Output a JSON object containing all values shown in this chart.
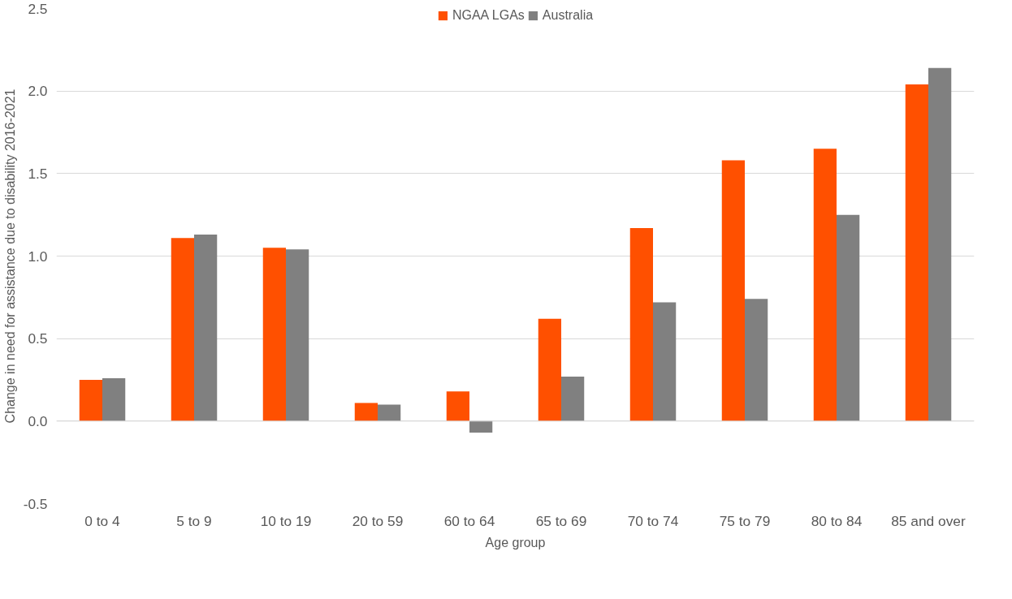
{
  "chart_data": {
    "type": "bar",
    "xlabel": "Age group",
    "ylabel": "Change in need for assistance due to disability 2016-2021",
    "categories": [
      "0 to 4",
      "5 to 9",
      "10 to 19",
      "20 to 59",
      "60 to 64",
      "65 to 69",
      "70 to 74",
      "75 to 79",
      "80 to 84",
      "85 and over"
    ],
    "series": [
      {
        "name": "NGAA LGAs",
        "color": "#ff5000",
        "values": [
          0.25,
          1.11,
          1.05,
          0.11,
          0.18,
          0.62,
          1.17,
          1.58,
          1.65,
          2.04
        ]
      },
      {
        "name": "Australia",
        "color": "#808080",
        "values": [
          0.26,
          1.13,
          1.04,
          0.1,
          -0.07,
          0.27,
          0.72,
          0.74,
          1.25,
          2.14
        ]
      }
    ],
    "ylim": [
      -0.5,
      2.5
    ],
    "yticks": [
      {
        "value": -0.5,
        "label": "-0.5"
      },
      {
        "value": 0,
        "label": "0.0"
      },
      {
        "value": 0.5,
        "label": "0.5"
      },
      {
        "value": 1,
        "label": "1.0"
      },
      {
        "value": 1.5,
        "label": "1.5"
      },
      {
        "value": 2,
        "label": "2.0"
      },
      {
        "value": 2.5,
        "label": "2.5"
      }
    ],
    "grid": "y",
    "legend": "top"
  }
}
